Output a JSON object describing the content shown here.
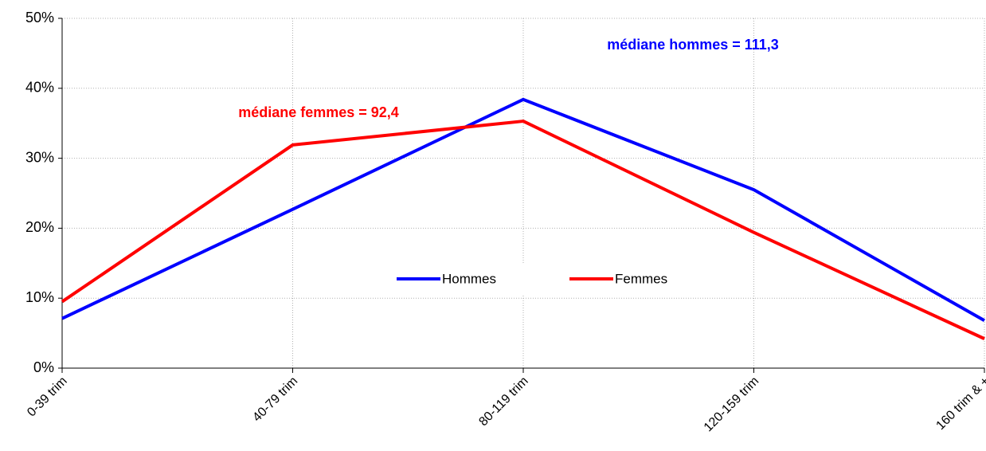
{
  "chart_data": {
    "type": "line",
    "categories": [
      "0-39 trim",
      "40-79 trim",
      "80-119 trim",
      "120-159 trim",
      "160 trim & +"
    ],
    "series": [
      {
        "name": "Hommes",
        "color": "#0000ff",
        "values": [
          7.1,
          22.7,
          38.4,
          25.5,
          6.8
        ]
      },
      {
        "name": "Femmes",
        "color": "#ff0000",
        "values": [
          9.5,
          31.9,
          35.3,
          19.4,
          4.2
        ]
      }
    ],
    "ylim": [
      0,
      50
    ],
    "yticks": [
      {
        "value": 0,
        "label": "0%"
      },
      {
        "value": 10,
        "label": "10%"
      },
      {
        "value": 20,
        "label": "20%"
      },
      {
        "value": 30,
        "label": "30%"
      },
      {
        "value": 40,
        "label": "40%"
      },
      {
        "value": 50,
        "label": "50%"
      }
    ],
    "grid": true,
    "annotations": [
      {
        "text": "médiane hommes = 111,3",
        "color": "#0000ff"
      },
      {
        "text": "médiane femmes = 92,4",
        "color": "#ff0000"
      }
    ]
  }
}
